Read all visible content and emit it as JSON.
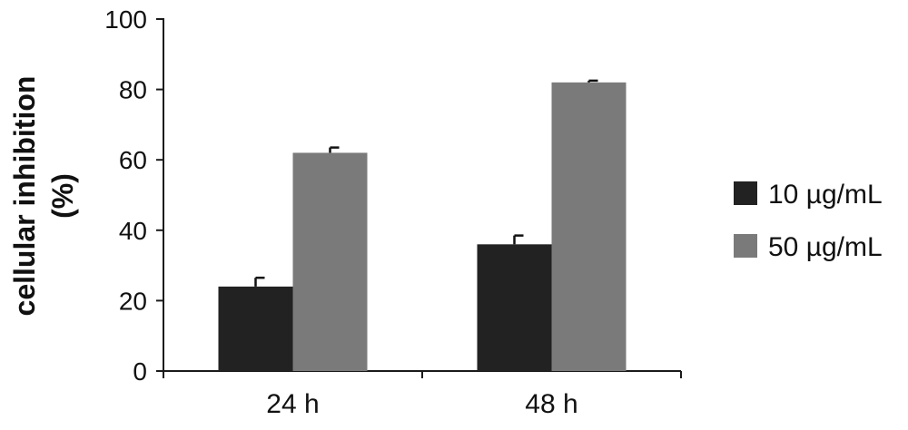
{
  "chart_data": {
    "type": "bar",
    "title": "",
    "xlabel": "",
    "ylabel_lines": [
      "cellular inhibition",
      "(%)"
    ],
    "categories": [
      "24 h",
      "48 h"
    ],
    "ylim": [
      0,
      100
    ],
    "yticks": [
      0,
      20,
      40,
      60,
      80,
      100
    ],
    "series": [
      {
        "name": "10 µg/mL",
        "color": "#222222",
        "values": [
          24,
          36
        ],
        "errors": [
          2.5,
          2.5
        ]
      },
      {
        "name": "50 µg/mL",
        "color": "#7a7a7a",
        "values": [
          62,
          82
        ],
        "errors": [
          1.5,
          0.5
        ]
      }
    ],
    "legend_position": "right",
    "grid": false
  }
}
